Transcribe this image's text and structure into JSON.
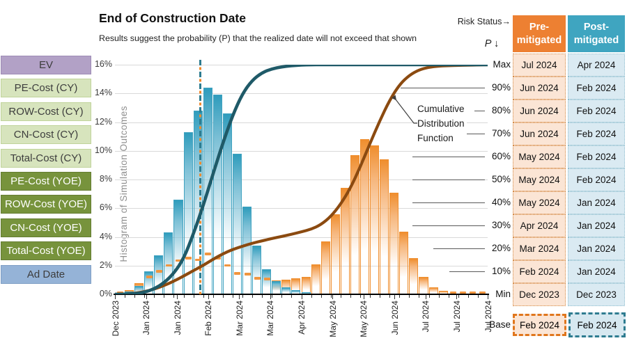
{
  "header": {
    "title": "End of Construction Date",
    "subtitle": "Results suggest the probability (P) that the realized date will not exceed that shown",
    "risk_status_label": "Risk Status→",
    "p_label": "P ↓"
  },
  "sidebar": {
    "items": [
      {
        "label": "EV",
        "variant": "ev"
      },
      {
        "label": "PE-Cost (CY)",
        "variant": "cy"
      },
      {
        "label": "ROW-Cost (CY)",
        "variant": "cy"
      },
      {
        "label": "CN-Cost (CY)",
        "variant": "cy"
      },
      {
        "label": "Total-Cost (CY)",
        "variant": "cy"
      },
      {
        "label": "PE-Cost (YOE)",
        "variant": "yoe"
      },
      {
        "label": "ROW-Cost (YOE)",
        "variant": "yoe"
      },
      {
        "label": "CN-Cost (YOE)",
        "variant": "yoe"
      },
      {
        "label": "Total-Cost (YOE)",
        "variant": "yoe"
      },
      {
        "label": "Ad Date",
        "variant": "addate"
      }
    ]
  },
  "chart_data": {
    "type": "histogram+cdf",
    "title": "End of Construction Date",
    "y_axis": {
      "label": "Histogram of Simulation Outcomes",
      "ticks": [
        "0%",
        "2%",
        "4%",
        "6%",
        "8%",
        "10%",
        "12%",
        "14%",
        "16%"
      ],
      "min": 0,
      "max": 16,
      "grid": true
    },
    "x_axis": {
      "tick_labels": [
        "Dec 2023",
        "Jan 2024",
        "Jan 2024",
        "Feb 2024",
        "Mar 2024",
        "Mar 2024",
        "Apr 2024",
        "May 2024",
        "May 2024",
        "Jun 2024",
        "Jul 2024",
        "Jul 2024",
        "Jul 2024"
      ]
    },
    "p_axis": {
      "ticks": [
        "Max",
        "90%",
        "80%",
        "70%",
        "60%",
        "50%",
        "40%",
        "30%",
        "20%",
        "10%",
        "Min"
      ],
      "position": "right"
    },
    "series": [
      {
        "name": "Post-mitigated histogram",
        "type": "bar",
        "color": "#3fa2c0",
        "values_pct": [
          0.05,
          0.2,
          0.6,
          1.6,
          2.7,
          4.3,
          6.6,
          11.3,
          12.8,
          14.4,
          13.9,
          12.6,
          9.8,
          6.1,
          3.4,
          1.75,
          0.9,
          0.5,
          0.3,
          0.15,
          0,
          0,
          0,
          0,
          0,
          0,
          0,
          0,
          0,
          0,
          0,
          0,
          0,
          0,
          0,
          0,
          0,
          0
        ]
      },
      {
        "name": "Pre-mitigated histogram",
        "type": "bar",
        "color": "#f0953f",
        "values_pct": [
          0.1,
          0.3,
          0.8,
          1.2,
          1.6,
          2.0,
          2.35,
          2.5,
          2.4,
          2.8,
          2.5,
          2.0,
          1.45,
          1.4,
          1.1,
          1.05,
          0.95,
          1.0,
          1.1,
          1.2,
          2.1,
          3.7,
          5.6,
          7.4,
          9.7,
          10.8,
          10.4,
          9.4,
          7.1,
          4.35,
          2.5,
          1.2,
          0.5,
          0.25,
          0.1,
          0.1,
          0.1,
          0.1
        ]
      },
      {
        "name": "Post-mitigated CDF",
        "type": "line",
        "color": "#1f5a68",
        "derived": "cumulative-of-post-histogram"
      },
      {
        "name": "Pre-mitigated CDF",
        "type": "line",
        "color": "#8b4a10",
        "derived": "cumulative-of-pre-histogram"
      }
    ],
    "annotation": {
      "lines": [
        "Cumulative",
        "Distribution",
        "Function"
      ]
    },
    "base_marker": {
      "label": "Base",
      "date": "Feb 2024"
    }
  },
  "table": {
    "columns": [
      {
        "line1": "Pre-",
        "line2": "mitigated",
        "color": "#ed8032"
      },
      {
        "line1": "Post-",
        "line2": "mitigated",
        "color": "#3fa5c0"
      }
    ],
    "rows": [
      {
        "p": "Max",
        "pre": "Jul 2024",
        "post": "Apr 2024"
      },
      {
        "p": "90%",
        "pre": "Jun 2024",
        "post": "Feb 2024"
      },
      {
        "p": "80%",
        "pre": "Jun 2024",
        "post": "Feb 2024"
      },
      {
        "p": "70%",
        "pre": "Jun 2024",
        "post": "Feb 2024"
      },
      {
        "p": "60%",
        "pre": "May 2024",
        "post": "Feb 2024"
      },
      {
        "p": "50%",
        "pre": "May 2024",
        "post": "Feb 2024"
      },
      {
        "p": "40%",
        "pre": "May 2024",
        "post": "Jan 2024"
      },
      {
        "p": "30%",
        "pre": "Apr 2024",
        "post": "Jan 2024"
      },
      {
        "p": "20%",
        "pre": "Mar 2024",
        "post": "Jan 2024"
      },
      {
        "p": "10%",
        "pre": "Feb 2024",
        "post": "Jan 2024"
      },
      {
        "p": "Min",
        "pre": "Dec 2023",
        "post": "Dec 2023"
      }
    ],
    "base": {
      "label": "Base",
      "pre": "Feb 2024",
      "post": "Feb 2024"
    }
  },
  "colors": {
    "bar_post": "#3fa2c0",
    "bar_pre": "#f0953f",
    "cdf_post": "#1f5a68",
    "cdf_pre": "#8b4a10",
    "header_pre": "#ed8032",
    "header_post": "#3fa5c0",
    "cell_pre": "#fbe5d5",
    "cell_post": "#daeaf2",
    "base_border_pre": "#e0761c",
    "base_border_post": "#2e7c90"
  }
}
